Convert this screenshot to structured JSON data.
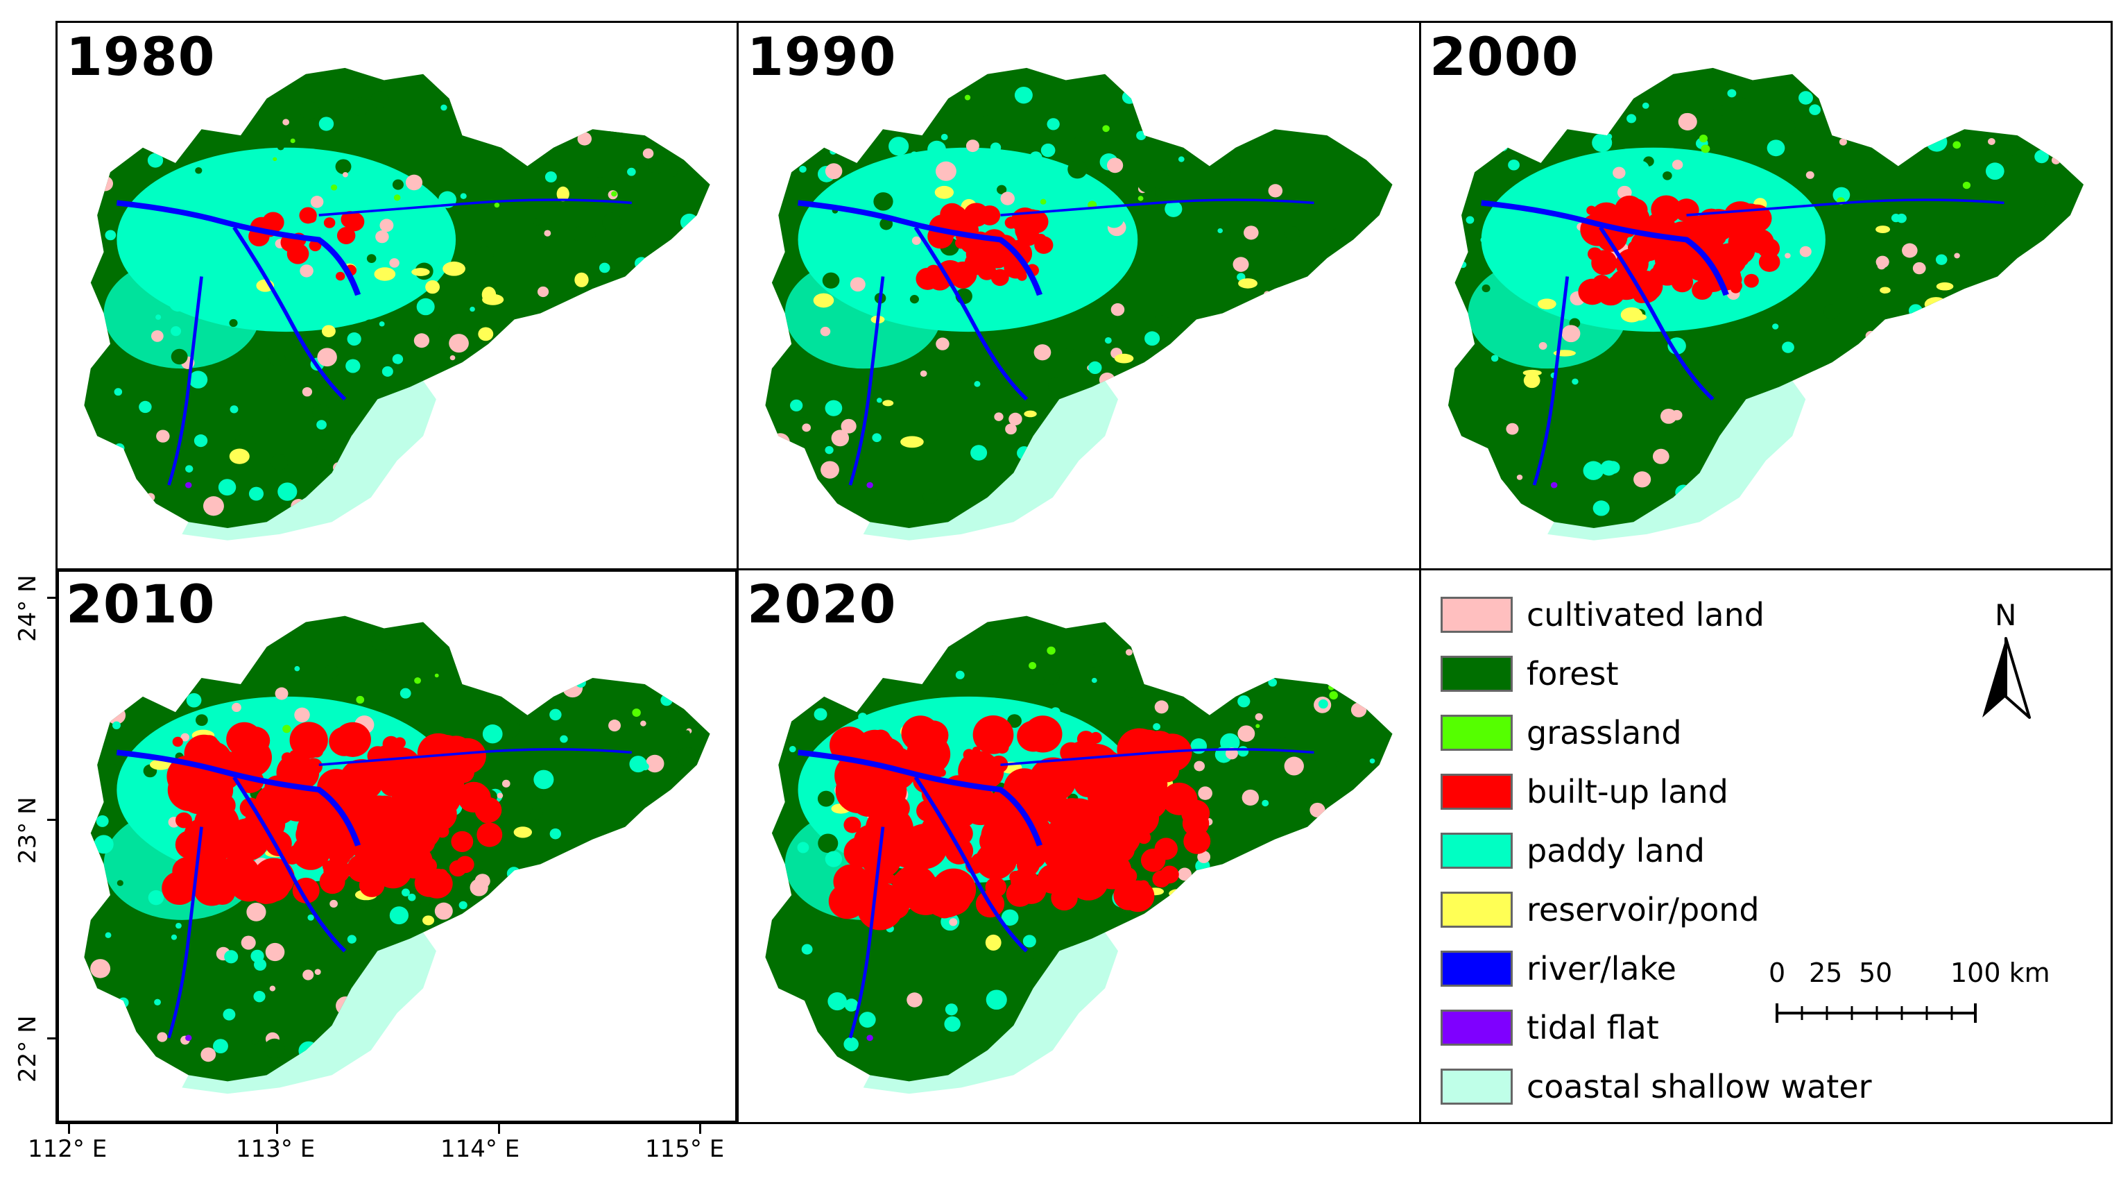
{
  "panels": [
    {
      "year": "1980",
      "builtup": 0.05
    },
    {
      "year": "1990",
      "builtup": 0.25
    },
    {
      "year": "2000",
      "builtup": 0.45
    },
    {
      "year": "2010",
      "builtup": 0.8
    },
    {
      "year": "2020",
      "builtup": 0.9
    }
  ],
  "axes": {
    "y_ticks": [
      "24° N",
      "23° N",
      "22° N"
    ],
    "x_ticks": [
      "112° E",
      "113° E",
      "114° E",
      "115° E"
    ]
  },
  "legend": {
    "items": [
      {
        "label": "cultivated land",
        "color": "#ffbfbf"
      },
      {
        "label": "forest",
        "color": "#006f00"
      },
      {
        "label": "grassland",
        "color": "#55ff00"
      },
      {
        "label": "built-up land",
        "color": "#ff0000"
      },
      {
        "label": "paddy land",
        "color": "#00ffc3"
      },
      {
        "label": "reservoir/pond",
        "color": "#ffff55"
      },
      {
        "label": "river/lake",
        "color": "#0000ff"
      },
      {
        "label": "tidal flat",
        "color": "#7f00ff"
      },
      {
        "label": "coastal shallow water",
        "color": "#bfffe8"
      }
    ],
    "north": "N",
    "scale": {
      "label_0": "0",
      "label_25": "25",
      "label_50": "50",
      "label_100": "100 km"
    }
  }
}
